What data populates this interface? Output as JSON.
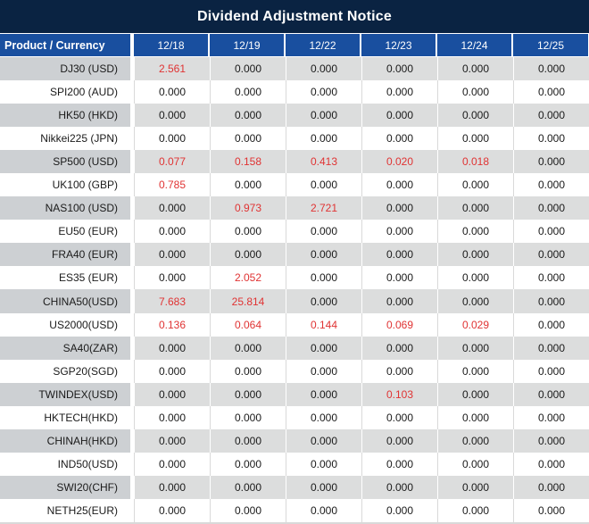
{
  "title": "Dividend Adjustment Notice",
  "colors": {
    "title_bg": "#0a2342",
    "header_bg": "#194f9f",
    "shaded_row_product_bg": "#cdd0d3",
    "shaded_row_bg": "#dcdddd",
    "white_row_bg": "#ffffff",
    "grid_line": "#d9d9d9",
    "positive_value_red": "#e03333",
    "text": "#1a1a1a"
  },
  "table": {
    "product_header": "Product / Currency",
    "date_headers": [
      "12/18",
      "12/19",
      "12/22",
      "12/23",
      "12/24",
      "12/25"
    ],
    "rows": [
      {
        "product": "DJ30 (USD)",
        "values": [
          "2.561",
          "0.000",
          "0.000",
          "0.000",
          "0.000",
          "0.000"
        ],
        "red": [
          1,
          0,
          0,
          0,
          0,
          0
        ]
      },
      {
        "product": "SPI200 (AUD)",
        "values": [
          "0.000",
          "0.000",
          "0.000",
          "0.000",
          "0.000",
          "0.000"
        ],
        "red": [
          0,
          0,
          0,
          0,
          0,
          0
        ]
      },
      {
        "product": "HK50 (HKD)",
        "values": [
          "0.000",
          "0.000",
          "0.000",
          "0.000",
          "0.000",
          "0.000"
        ],
        "red": [
          0,
          0,
          0,
          0,
          0,
          0
        ]
      },
      {
        "product": "Nikkei225 (JPN)",
        "values": [
          "0.000",
          "0.000",
          "0.000",
          "0.000",
          "0.000",
          "0.000"
        ],
        "red": [
          0,
          0,
          0,
          0,
          0,
          0
        ]
      },
      {
        "product": "SP500 (USD)",
        "values": [
          "0.077",
          "0.158",
          "0.413",
          "0.020",
          "0.018",
          "0.000"
        ],
        "red": [
          1,
          1,
          1,
          1,
          1,
          0
        ]
      },
      {
        "product": "UK100 (GBP)",
        "values": [
          "0.785",
          "0.000",
          "0.000",
          "0.000",
          "0.000",
          "0.000"
        ],
        "red": [
          1,
          0,
          0,
          0,
          0,
          0
        ]
      },
      {
        "product": "NAS100 (USD)",
        "values": [
          "0.000",
          "0.973",
          "2.721",
          "0.000",
          "0.000",
          "0.000"
        ],
        "red": [
          0,
          1,
          1,
          0,
          0,
          0
        ]
      },
      {
        "product": "EU50 (EUR)",
        "values": [
          "0.000",
          "0.000",
          "0.000",
          "0.000",
          "0.000",
          "0.000"
        ],
        "red": [
          0,
          0,
          0,
          0,
          0,
          0
        ]
      },
      {
        "product": "FRA40 (EUR)",
        "values": [
          "0.000",
          "0.000",
          "0.000",
          "0.000",
          "0.000",
          "0.000"
        ],
        "red": [
          0,
          0,
          0,
          0,
          0,
          0
        ]
      },
      {
        "product": "ES35 (EUR)",
        "values": [
          "0.000",
          "2.052",
          "0.000",
          "0.000",
          "0.000",
          "0.000"
        ],
        "red": [
          0,
          1,
          0,
          0,
          0,
          0
        ]
      },
      {
        "product": "CHINA50(USD)",
        "values": [
          "7.683",
          "25.814",
          "0.000",
          "0.000",
          "0.000",
          "0.000"
        ],
        "red": [
          1,
          1,
          0,
          0,
          0,
          0
        ]
      },
      {
        "product": "US2000(USD)",
        "values": [
          "0.136",
          "0.064",
          "0.144",
          "0.069",
          "0.029",
          "0.000"
        ],
        "red": [
          1,
          1,
          1,
          1,
          1,
          0
        ]
      },
      {
        "product": "SA40(ZAR)",
        "values": [
          "0.000",
          "0.000",
          "0.000",
          "0.000",
          "0.000",
          "0.000"
        ],
        "red": [
          0,
          0,
          0,
          0,
          0,
          0
        ]
      },
      {
        "product": "SGP20(SGD)",
        "values": [
          "0.000",
          "0.000",
          "0.000",
          "0.000",
          "0.000",
          "0.000"
        ],
        "red": [
          0,
          0,
          0,
          0,
          0,
          0
        ]
      },
      {
        "product": "TWINDEX(USD)",
        "values": [
          "0.000",
          "0.000",
          "0.000",
          "0.103",
          "0.000",
          "0.000"
        ],
        "red": [
          0,
          0,
          0,
          1,
          0,
          0
        ]
      },
      {
        "product": "HKTECH(HKD)",
        "values": [
          "0.000",
          "0.000",
          "0.000",
          "0.000",
          "0.000",
          "0.000"
        ],
        "red": [
          0,
          0,
          0,
          0,
          0,
          0
        ]
      },
      {
        "product": "CHINAH(HKD)",
        "values": [
          "0.000",
          "0.000",
          "0.000",
          "0.000",
          "0.000",
          "0.000"
        ],
        "red": [
          0,
          0,
          0,
          0,
          0,
          0
        ]
      },
      {
        "product": "IND50(USD)",
        "values": [
          "0.000",
          "0.000",
          "0.000",
          "0.000",
          "0.000",
          "0.000"
        ],
        "red": [
          0,
          0,
          0,
          0,
          0,
          0
        ]
      },
      {
        "product": "SWI20(CHF)",
        "values": [
          "0.000",
          "0.000",
          "0.000",
          "0.000",
          "0.000",
          "0.000"
        ],
        "red": [
          0,
          0,
          0,
          0,
          0,
          0
        ]
      },
      {
        "product": "NETH25(EUR)",
        "values": [
          "0.000",
          "0.000",
          "0.000",
          "0.000",
          "0.000",
          "0.000"
        ],
        "red": [
          0,
          0,
          0,
          0,
          0,
          0
        ]
      }
    ]
  }
}
